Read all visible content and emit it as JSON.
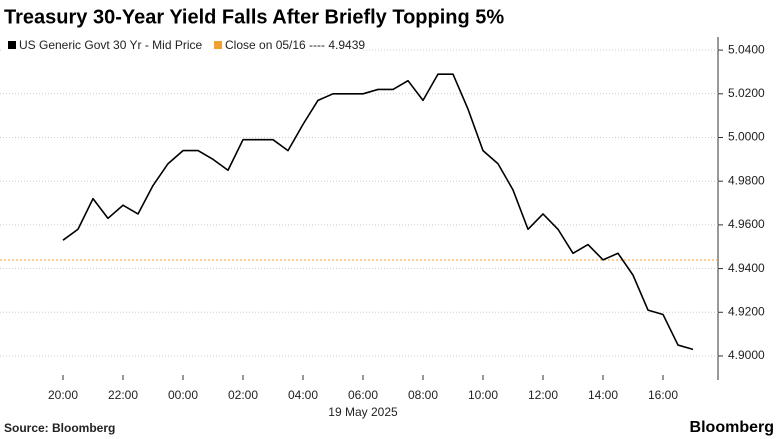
{
  "chart_data": {
    "type": "line",
    "title": "Treasury 30-Year Yield Falls After Briefly Topping 5%",
    "source": "Source: Bloomberg",
    "brand": "Bloomberg",
    "date_label": "19 May 2025",
    "categories": [
      null,
      "20:00",
      null,
      null,
      null,
      "22:00",
      null,
      null,
      null,
      "00:00",
      null,
      null,
      null,
      "02:00",
      null,
      null,
      null,
      "04:00",
      null,
      null,
      null,
      "06:00",
      null,
      null,
      null,
      "08:00",
      null,
      null,
      null,
      "10:00",
      null,
      null,
      null,
      "12:00",
      null,
      null,
      null,
      "14:00",
      null,
      null,
      null,
      "16:00",
      null,
      null
    ],
    "series": [
      {
        "name": "US Generic Govt 30 Yr - Mid Price",
        "color": "#000000",
        "values": [
          null,
          4.953,
          4.958,
          4.972,
          4.963,
          4.969,
          4.965,
          4.978,
          4.988,
          4.994,
          4.994,
          4.99,
          4.985,
          4.999,
          4.999,
          4.999,
          4.994,
          5.006,
          5.017,
          5.02,
          5.02,
          5.02,
          5.022,
          5.022,
          5.026,
          5.017,
          5.029,
          5.029,
          5.013,
          4.994,
          4.988,
          4.976,
          4.958,
          4.965,
          4.958,
          4.947,
          4.951,
          4.944,
          4.947,
          4.937,
          4.921,
          4.919,
          4.905,
          4.903
        ]
      }
    ],
    "reference_line": {
      "value": 4.9439,
      "label": "Close on 05/16 ---- 4.9439",
      "color": "#f0a030"
    },
    "ylim": [
      4.889,
      5.046
    ],
    "yticks": [
      {
        "value": 4.9,
        "label": "4.9000"
      },
      {
        "value": 4.92,
        "label": "4.9200"
      },
      {
        "value": 4.94,
        "label": "4.9400"
      },
      {
        "value": 4.96,
        "label": "4.9600"
      },
      {
        "value": 4.98,
        "label": "4.9800"
      },
      {
        "value": 5.0,
        "label": "5.0000"
      },
      {
        "value": 5.02,
        "label": "5.0200"
      },
      {
        "value": 5.04,
        "label": "5.0400"
      }
    ],
    "y_axis_side": "right",
    "grid": true
  }
}
